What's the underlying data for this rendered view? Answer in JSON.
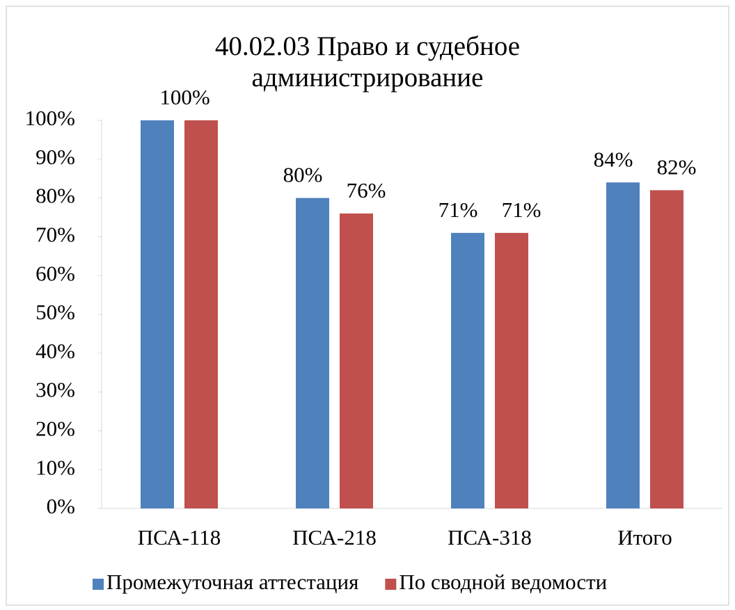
{
  "chart_data": {
    "type": "bar",
    "title": [
      "40.02.03 Право и судебное",
      "администрирование"
    ],
    "categories": [
      "ПСА-118",
      "ПСА-218",
      "ПСА-318",
      "Итого"
    ],
    "series": [
      {
        "name": "Промежуточная аттестация",
        "color": "#4f81bd",
        "values": [
          100,
          80,
          71,
          84
        ],
        "value_labels": [
          null,
          "80%",
          "71%",
          "84%"
        ]
      },
      {
        "name": "По сводной ведомости",
        "color": "#c0504d",
        "values": [
          100,
          76,
          71,
          82
        ],
        "value_labels": [
          "100%",
          "76%",
          "71%",
          "82%"
        ]
      }
    ],
    "ylim": [
      0,
      100
    ],
    "yticks": [
      {
        "value": 0,
        "label": "0%"
      },
      {
        "value": 10,
        "label": "10%"
      },
      {
        "value": 20,
        "label": "20%"
      },
      {
        "value": 30,
        "label": "30%"
      },
      {
        "value": 40,
        "label": "40%"
      },
      {
        "value": 50,
        "label": "50%"
      },
      {
        "value": 60,
        "label": "60%"
      },
      {
        "value": 70,
        "label": "70%"
      },
      {
        "value": 80,
        "label": "80%"
      },
      {
        "value": 90,
        "label": "90%"
      },
      {
        "value": 100,
        "label": "100%"
      }
    ],
    "grid": false,
    "legend": "bottom"
  }
}
